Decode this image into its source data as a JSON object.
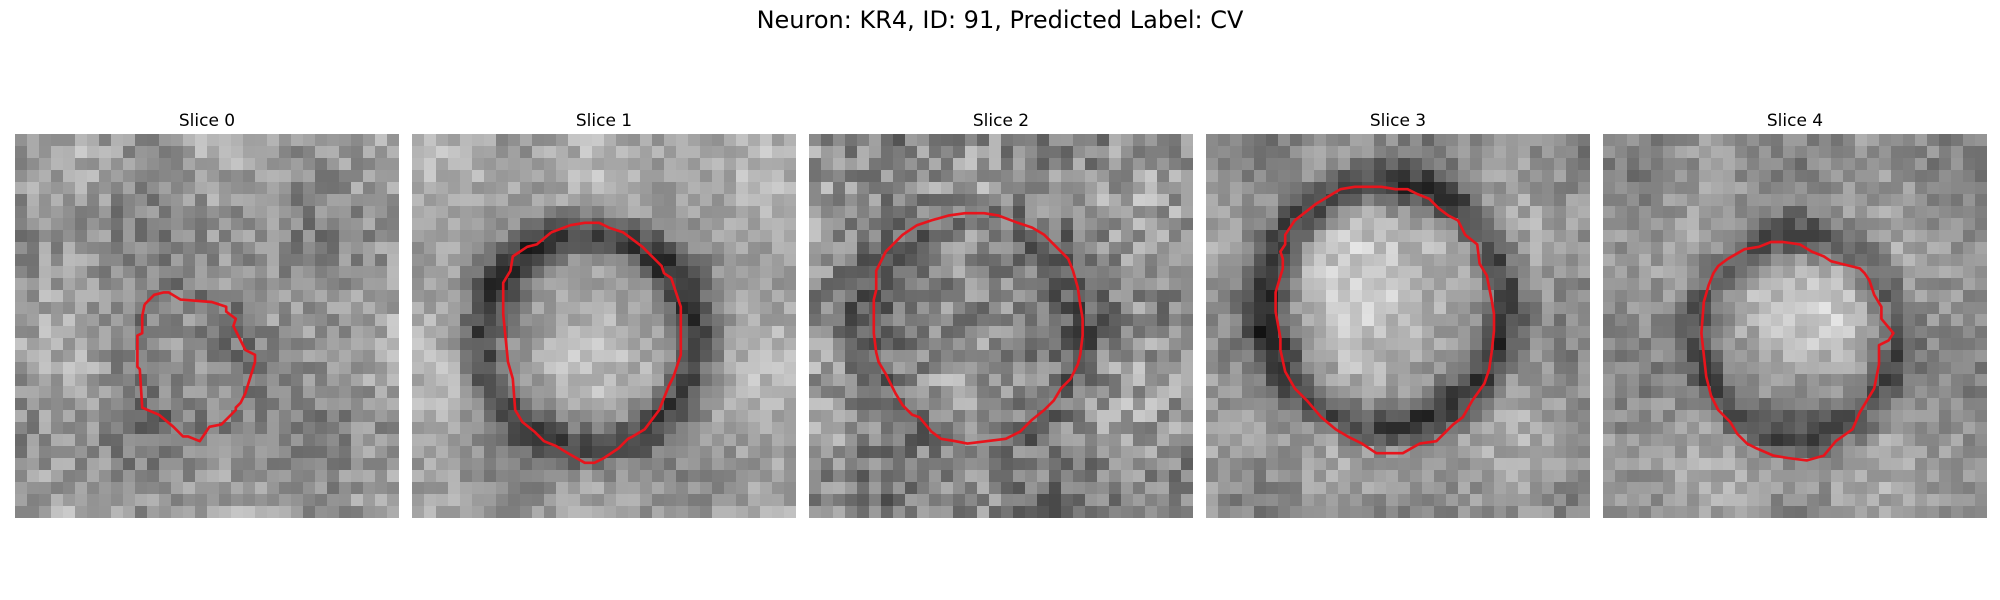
{
  "figure": {
    "title": "Neuron: KR4, ID: 91, Predicted Label: CV",
    "outline_color": "#e8141c",
    "colormap": "gray",
    "grid_size": 32
  },
  "panels": [
    {
      "title": "Slice 0",
      "outline": [
        [
          10.8,
          14.2
        ],
        [
          10.6,
          15.2
        ],
        [
          10.6,
          16.6
        ],
        [
          10.2,
          16.8
        ],
        [
          10.2,
          19.4
        ],
        [
          10.4,
          19.6
        ],
        [
          10.6,
          22.8
        ],
        [
          12,
          23.4
        ],
        [
          13.2,
          24.4
        ],
        [
          14,
          25.2
        ],
        [
          14.4,
          25.2
        ],
        [
          15.4,
          25.6
        ],
        [
          16.2,
          24.4
        ],
        [
          17.2,
          24.2
        ],
        [
          18.4,
          23
        ],
        [
          18.4,
          22.8
        ],
        [
          18.8,
          22.4
        ],
        [
          19.2,
          21.6
        ],
        [
          20,
          19
        ],
        [
          20,
          18.4
        ],
        [
          19.2,
          18
        ],
        [
          18.2,
          16
        ],
        [
          18.4,
          15.4
        ],
        [
          17.6,
          14.8
        ],
        [
          17.6,
          14.4
        ],
        [
          16.4,
          14
        ],
        [
          13.8,
          13.8
        ],
        [
          12.8,
          13.2
        ],
        [
          12.4,
          13.2
        ],
        [
          11.6,
          13.4
        ],
        [
          10.8,
          14.2
        ]
      ]
    },
    {
      "title": "Slice 1",
      "outline": [
        [
          11.6,
          8.2
        ],
        [
          10.4,
          9.2
        ],
        [
          9.6,
          9.4
        ],
        [
          8.4,
          10.2
        ],
        [
          8.2,
          11.4
        ],
        [
          7.6,
          12.4
        ],
        [
          7.6,
          15
        ],
        [
          8,
          19
        ],
        [
          8.4,
          20.4
        ],
        [
          8.6,
          23
        ],
        [
          9.2,
          24
        ],
        [
          10.2,
          24.8
        ],
        [
          11,
          25.6
        ],
        [
          12,
          26
        ],
        [
          13,
          26.6
        ],
        [
          14.4,
          27.4
        ],
        [
          15.2,
          27.4
        ],
        [
          16,
          27
        ],
        [
          17.2,
          26.2
        ],
        [
          18,
          25.4
        ],
        [
          18.4,
          25.2
        ],
        [
          19.4,
          24.6
        ],
        [
          20.6,
          23
        ],
        [
          21.4,
          21
        ],
        [
          21.8,
          20.2
        ],
        [
          22.4,
          18.4
        ],
        [
          22.4,
          14.4
        ],
        [
          21.6,
          12
        ],
        [
          21,
          11.6
        ],
        [
          20.8,
          11
        ],
        [
          19.2,
          9.4
        ],
        [
          17.6,
          8.2
        ],
        [
          16.4,
          7.8
        ],
        [
          15.6,
          7.4
        ],
        [
          14.4,
          7.4
        ],
        [
          13.2,
          7.6
        ],
        [
          11.6,
          8.2
        ]
      ]
    },
    {
      "title": "Slice 2",
      "outline": [
        [
          6.4,
          9.8
        ],
        [
          6,
          10.6
        ],
        [
          5.6,
          11.4
        ],
        [
          5.6,
          13
        ],
        [
          5.4,
          13.8
        ],
        [
          5.4,
          16.6
        ],
        [
          5.6,
          18.2
        ],
        [
          5.8,
          19
        ],
        [
          6.4,
          20
        ],
        [
          7.2,
          21.6
        ],
        [
          7.8,
          22.6
        ],
        [
          8.6,
          23.4
        ],
        [
          9.2,
          23.6
        ],
        [
          10.2,
          24.8
        ],
        [
          11,
          25.4
        ],
        [
          12.2,
          25.6
        ],
        [
          13.2,
          25.8
        ],
        [
          14.8,
          25.6
        ],
        [
          16.4,
          25.4
        ],
        [
          17.6,
          24.8
        ],
        [
          18.6,
          23.8
        ],
        [
          19.6,
          23
        ],
        [
          20.4,
          22.2
        ],
        [
          21,
          21.2
        ],
        [
          21.8,
          20.4
        ],
        [
          22.4,
          19.2
        ],
        [
          22.6,
          18.4
        ],
        [
          22.8,
          16.8
        ],
        [
          22.8,
          15.4
        ],
        [
          22.6,
          14.2
        ],
        [
          22.4,
          12.8
        ],
        [
          22,
          11.4
        ],
        [
          21.6,
          10.4
        ],
        [
          20.6,
          9.4
        ],
        [
          19.6,
          8.4
        ],
        [
          18.6,
          7.8
        ],
        [
          17.4,
          7.4
        ],
        [
          15.8,
          6.8
        ],
        [
          14.6,
          6.6
        ],
        [
          13,
          6.6
        ],
        [
          11.6,
          6.8
        ],
        [
          10.2,
          7.2
        ],
        [
          9,
          7.6
        ],
        [
          7.8,
          8.4
        ],
        [
          6.4,
          9.8
        ]
      ]
    },
    {
      "title": "Slice 3",
      "outline": [
        [
          9.2,
          5.8
        ],
        [
          7.4,
          7.2
        ],
        [
          6.6,
          8.4
        ],
        [
          6.6,
          9.2
        ],
        [
          6.2,
          9.8
        ],
        [
          6.4,
          10.4
        ],
        [
          6.4,
          11.2
        ],
        [
          5.8,
          13.2
        ],
        [
          5.8,
          14.8
        ],
        [
          6.2,
          17
        ],
        [
          6.2,
          18
        ],
        [
          6.6,
          19.8
        ],
        [
          7.4,
          21.2
        ],
        [
          8.4,
          22.2
        ],
        [
          9.6,
          23.6
        ],
        [
          10.8,
          24.6
        ],
        [
          11.8,
          25.2
        ],
        [
          13,
          25.8
        ],
        [
          14.2,
          26.6
        ],
        [
          16.4,
          26.6
        ],
        [
          17.8,
          25.8
        ],
        [
          19.2,
          25.6
        ],
        [
          20.6,
          24.2
        ],
        [
          21.4,
          23.6
        ],
        [
          22.2,
          22.2
        ],
        [
          23.2,
          20.8
        ],
        [
          23.6,
          19.6
        ],
        [
          23.8,
          18.2
        ],
        [
          24,
          16.4
        ],
        [
          24,
          15
        ],
        [
          23.8,
          13.8
        ],
        [
          23.6,
          12.8
        ],
        [
          23.4,
          11.8
        ],
        [
          22.8,
          10.8
        ],
        [
          22.6,
          9.2
        ],
        [
          21.6,
          8.4
        ],
        [
          21,
          7.2
        ],
        [
          20.2,
          6.8
        ],
        [
          19.4,
          6.2
        ],
        [
          18.6,
          5.4
        ],
        [
          17.6,
          5
        ],
        [
          16.8,
          4.6
        ],
        [
          15.8,
          4.6
        ],
        [
          14.6,
          4.4
        ],
        [
          13.4,
          4.4
        ],
        [
          12.4,
          4.4
        ],
        [
          11.2,
          4.6
        ],
        [
          9.2,
          5.8
        ]
      ]
    },
    {
      "title": "Slice 4",
      "outline": [
        [
          10.4,
          10.4
        ],
        [
          9.6,
          11
        ],
        [
          9.2,
          11.6
        ],
        [
          8.8,
          12.6
        ],
        [
          8.4,
          14
        ],
        [
          8.2,
          16.6
        ],
        [
          8.4,
          18.4
        ],
        [
          8.6,
          20.2
        ],
        [
          9,
          21.8
        ],
        [
          9.6,
          23
        ],
        [
          10.6,
          24
        ],
        [
          11.2,
          25
        ],
        [
          12,
          25.8
        ],
        [
          12.8,
          26.2
        ],
        [
          14.2,
          26.8
        ],
        [
          15.4,
          27
        ],
        [
          17,
          27.2
        ],
        [
          18.4,
          26.8
        ],
        [
          19.4,
          25.6
        ],
        [
          20.8,
          24.6
        ],
        [
          21.4,
          23.2
        ],
        [
          22,
          22.2
        ],
        [
          22.6,
          21.2
        ],
        [
          23,
          19.2
        ],
        [
          23,
          17.6
        ],
        [
          23.8,
          17.2
        ],
        [
          24.2,
          16.6
        ],
        [
          23.2,
          15.4
        ],
        [
          23.2,
          14.4
        ],
        [
          22.6,
          13.4
        ],
        [
          22.2,
          12.2
        ],
        [
          21.8,
          11.6
        ],
        [
          21.4,
          11.2
        ],
        [
          20.6,
          11
        ],
        [
          19.8,
          10.8
        ],
        [
          19,
          10.6
        ],
        [
          18.4,
          10.2
        ],
        [
          17.4,
          9.8
        ],
        [
          16.4,
          9.2
        ],
        [
          15,
          9
        ],
        [
          14,
          9
        ],
        [
          13,
          9.4
        ],
        [
          11.8,
          9.6
        ],
        [
          10.4,
          10.4
        ]
      ]
    }
  ]
}
